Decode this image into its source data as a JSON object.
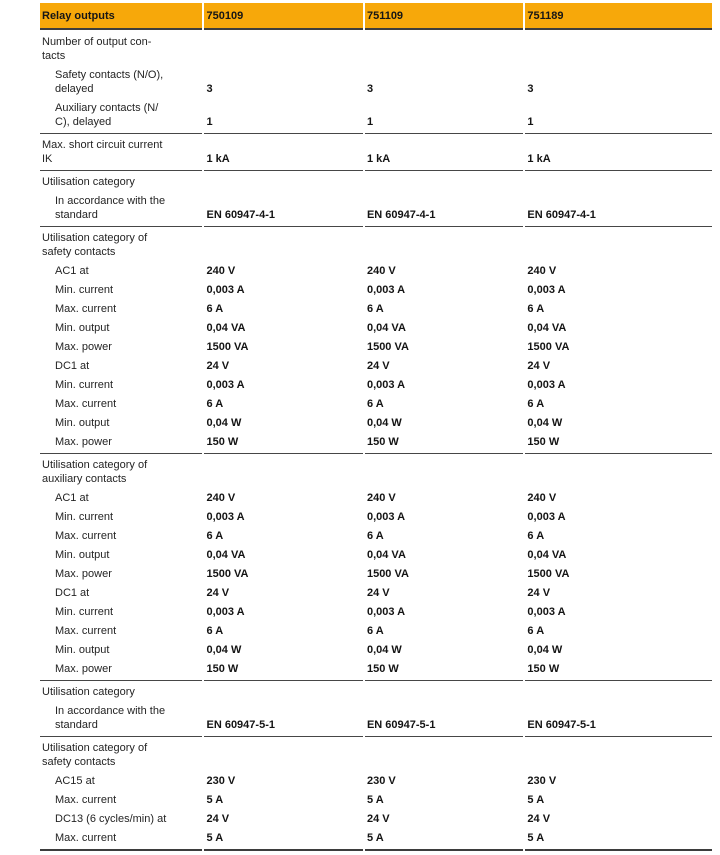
{
  "colors": {
    "header_bg": "#F7A80A",
    "rule": "#464646",
    "text": "#1E1E1E"
  },
  "table": {
    "header": {
      "title": "Relay outputs",
      "products": [
        "750109",
        "751109",
        "751189"
      ]
    },
    "sections": [
      {
        "rows": [
          {
            "label": "Number of output con-\ntacts",
            "indent": false,
            "values": [
              "",
              "",
              ""
            ]
          },
          {
            "label": "Safety contacts (N/O),\ndelayed",
            "indent": true,
            "values": [
              "3",
              "3",
              "3"
            ]
          },
          {
            "label": "Auxiliary contacts (N/\nC), delayed",
            "indent": true,
            "values": [
              "1",
              "1",
              "1"
            ]
          }
        ]
      },
      {
        "rows": [
          {
            "label": "Max. short circuit current\nIK",
            "indent": false,
            "values": [
              "1 kA",
              "1 kA",
              "1 kA"
            ]
          }
        ]
      },
      {
        "rows": [
          {
            "label": "Utilisation category",
            "indent": false,
            "values": [
              "",
              "",
              ""
            ]
          },
          {
            "label": "In accordance with the\nstandard",
            "indent": true,
            "values": [
              "EN 60947-4-1",
              "EN 60947-4-1",
              "EN 60947-4-1"
            ]
          }
        ]
      },
      {
        "rows": [
          {
            "label": "Utilisation category of\nsafety contacts",
            "indent": false,
            "values": [
              "",
              "",
              ""
            ]
          },
          {
            "label": "AC1 at",
            "indent": true,
            "values": [
              "240 V",
              "240 V",
              "240 V"
            ]
          },
          {
            "label": "Min. current",
            "indent": true,
            "values": [
              "0,003 A",
              "0,003 A",
              "0,003 A"
            ]
          },
          {
            "label": "Max. current",
            "indent": true,
            "values": [
              "6 A",
              "6 A",
              "6 A"
            ]
          },
          {
            "label": "Min. output",
            "indent": true,
            "values": [
              "0,04 VA",
              "0,04 VA",
              "0,04 VA"
            ]
          },
          {
            "label": "Max. power",
            "indent": true,
            "values": [
              "1500 VA",
              "1500 VA",
              "1500 VA"
            ]
          },
          {
            "label": "DC1 at",
            "indent": true,
            "values": [
              "24 V",
              "24 V",
              "24 V"
            ]
          },
          {
            "label": "Min. current",
            "indent": true,
            "values": [
              "0,003 A",
              "0,003 A",
              "0,003 A"
            ]
          },
          {
            "label": "Max. current",
            "indent": true,
            "values": [
              "6 A",
              "6 A",
              "6 A"
            ]
          },
          {
            "label": "Min. output",
            "indent": true,
            "values": [
              "0,04 W",
              "0,04 W",
              "0,04 W"
            ]
          },
          {
            "label": "Max. power",
            "indent": true,
            "values": [
              "150 W",
              "150 W",
              "150 W"
            ]
          }
        ]
      },
      {
        "rows": [
          {
            "label": "Utilisation category of\nauxiliary contacts",
            "indent": false,
            "values": [
              "",
              "",
              ""
            ]
          },
          {
            "label": "AC1 at",
            "indent": true,
            "values": [
              "240 V",
              "240 V",
              "240 V"
            ]
          },
          {
            "label": "Min. current",
            "indent": true,
            "values": [
              "0,003 A",
              "0,003 A",
              "0,003 A"
            ]
          },
          {
            "label": "Max. current",
            "indent": true,
            "values": [
              "6 A",
              "6 A",
              "6 A"
            ]
          },
          {
            "label": "Min. output",
            "indent": true,
            "values": [
              "0,04 VA",
              "0,04 VA",
              "0,04 VA"
            ]
          },
          {
            "label": "Max. power",
            "indent": true,
            "values": [
              "1500 VA",
              "1500 VA",
              "1500 VA"
            ]
          },
          {
            "label": "DC1 at",
            "indent": true,
            "values": [
              "24 V",
              "24 V",
              "24 V"
            ]
          },
          {
            "label": "Min. current",
            "indent": true,
            "values": [
              "0,003 A",
              "0,003 A",
              "0,003 A"
            ]
          },
          {
            "label": "Max. current",
            "indent": true,
            "values": [
              "6 A",
              "6 A",
              "6 A"
            ]
          },
          {
            "label": "Min. output",
            "indent": true,
            "values": [
              "0,04 W",
              "0,04 W",
              "0,04 W"
            ]
          },
          {
            "label": "Max. power",
            "indent": true,
            "values": [
              "150 W",
              "150 W",
              "150 W"
            ]
          }
        ]
      },
      {
        "rows": [
          {
            "label": "Utilisation category",
            "indent": false,
            "values": [
              "",
              "",
              ""
            ]
          },
          {
            "label": "In accordance with the\nstandard",
            "indent": true,
            "values": [
              "EN 60947-5-1",
              "EN 60947-5-1",
              "EN 60947-5-1"
            ]
          }
        ]
      },
      {
        "rows": [
          {
            "label": "Utilisation category of\nsafety contacts",
            "indent": false,
            "values": [
              "",
              "",
              ""
            ]
          },
          {
            "label": "AC15 at",
            "indent": true,
            "values": [
              "230 V",
              "230 V",
              "230 V"
            ]
          },
          {
            "label": "Max. current",
            "indent": true,
            "values": [
              "5 A",
              "5 A",
              "5 A"
            ]
          },
          {
            "label": "DC13 (6 cycles/min) at",
            "indent": true,
            "values": [
              "24 V",
              "24 V",
              "24 V"
            ]
          },
          {
            "label": "Max. current",
            "indent": true,
            "values": [
              "5 A",
              "5 A",
              "5 A"
            ]
          }
        ]
      }
    ]
  }
}
